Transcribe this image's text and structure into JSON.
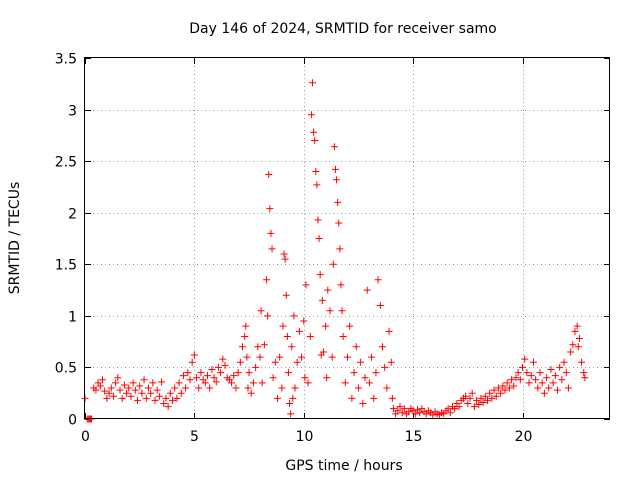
{
  "chart_data": {
    "type": "scatter",
    "title": "Day 146 of 2024, SRMTID for receiver samo",
    "xlabel": "GPS time / hours",
    "ylabel": "SRMTID / TECUs",
    "xlim": [
      0,
      24
    ],
    "ylim": [
      0,
      3.5
    ],
    "xticks": [
      0,
      5,
      10,
      15,
      20
    ],
    "yticks": [
      0,
      0.5,
      1,
      1.5,
      2,
      2.5,
      3,
      3.5
    ],
    "xtick_labels": [
      "0",
      "5",
      "10",
      "15",
      "20"
    ],
    "ytick_labels": [
      "0",
      "0.5",
      "1",
      "1.5",
      "2",
      "2.5",
      "3",
      "3.5"
    ],
    "grid": true,
    "marker": "+",
    "color": "#ff0000",
    "series": [
      {
        "name": "SRMTID",
        "points": [
          [
            0.0,
            0.2
          ],
          [
            0.1,
            0.0
          ],
          [
            0.15,
            0.0
          ],
          [
            0.2,
            0.0
          ],
          [
            0.25,
            0.0
          ],
          [
            0.3,
            0.0
          ],
          [
            0.4,
            0.3
          ],
          [
            0.5,
            0.28
          ],
          [
            0.6,
            0.35
          ],
          [
            0.7,
            0.32
          ],
          [
            0.8,
            0.38
          ],
          [
            0.9,
            0.27
          ],
          [
            1.0,
            0.2
          ],
          [
            1.1,
            0.25
          ],
          [
            1.2,
            0.3
          ],
          [
            1.3,
            0.22
          ],
          [
            1.4,
            0.35
          ],
          [
            1.5,
            0.4
          ],
          [
            1.6,
            0.28
          ],
          [
            1.7,
            0.2
          ],
          [
            1.8,
            0.33
          ],
          [
            1.9,
            0.25
          ],
          [
            2.0,
            0.3
          ],
          [
            2.1,
            0.22
          ],
          [
            2.2,
            0.35
          ],
          [
            2.3,
            0.28
          ],
          [
            2.4,
            0.18
          ],
          [
            2.5,
            0.32
          ],
          [
            2.6,
            0.25
          ],
          [
            2.7,
            0.38
          ],
          [
            2.8,
            0.2
          ],
          [
            2.9,
            0.3
          ],
          [
            3.0,
            0.25
          ],
          [
            3.1,
            0.35
          ],
          [
            3.2,
            0.18
          ],
          [
            3.3,
            0.28
          ],
          [
            3.4,
            0.22
          ],
          [
            3.5,
            0.36
          ],
          [
            3.6,
            0.15
          ],
          [
            3.7,
            0.2
          ],
          [
            3.8,
            0.12
          ],
          [
            3.9,
            0.25
          ],
          [
            4.0,
            0.18
          ],
          [
            4.1,
            0.3
          ],
          [
            4.2,
            0.2
          ],
          [
            4.3,
            0.35
          ],
          [
            4.4,
            0.25
          ],
          [
            4.5,
            0.42
          ],
          [
            4.6,
            0.3
          ],
          [
            4.7,
            0.45
          ],
          [
            4.8,
            0.38
          ],
          [
            4.9,
            0.55
          ],
          [
            5.0,
            0.62
          ],
          [
            5.1,
            0.4
          ],
          [
            5.2,
            0.3
          ],
          [
            5.3,
            0.45
          ],
          [
            5.4,
            0.38
          ],
          [
            5.5,
            0.35
          ],
          [
            5.6,
            0.42
          ],
          [
            5.7,
            0.3
          ],
          [
            5.8,
            0.48
          ],
          [
            5.9,
            0.4
          ],
          [
            6.0,
            0.36
          ],
          [
            6.1,
            0.5
          ],
          [
            6.2,
            0.45
          ],
          [
            6.3,
            0.58
          ],
          [
            6.4,
            0.52
          ],
          [
            6.5,
            0.4
          ],
          [
            6.6,
            0.38
          ],
          [
            6.7,
            0.35
          ],
          [
            6.8,
            0.42
          ],
          [
            6.9,
            0.3
          ],
          [
            7.0,
            0.45
          ],
          [
            7.1,
            0.55
          ],
          [
            7.2,
            0.7
          ],
          [
            7.3,
            0.8
          ],
          [
            7.35,
            0.9
          ],
          [
            7.4,
            0.6
          ],
          [
            7.45,
            0.3
          ],
          [
            7.5,
            0.45
          ],
          [
            7.6,
            0.25
          ],
          [
            7.7,
            0.35
          ],
          [
            7.8,
            0.5
          ],
          [
            7.9,
            0.7
          ],
          [
            8.0,
            0.6
          ],
          [
            8.05,
            1.05
          ],
          [
            8.1,
            0.35
          ],
          [
            8.2,
            0.72
          ],
          [
            8.3,
            1.35
          ],
          [
            8.35,
            1.0
          ],
          [
            8.4,
            2.37
          ],
          [
            8.45,
            2.04
          ],
          [
            8.5,
            1.8
          ],
          [
            8.55,
            1.65
          ],
          [
            8.6,
            0.4
          ],
          [
            8.7,
            0.55
          ],
          [
            8.8,
            0.2
          ],
          [
            8.9,
            0.6
          ],
          [
            9.0,
            0.3
          ],
          [
            9.05,
            0.9
          ],
          [
            9.1,
            1.6
          ],
          [
            9.15,
            1.55
          ],
          [
            9.2,
            1.2
          ],
          [
            9.25,
            0.8
          ],
          [
            9.3,
            0.45
          ],
          [
            9.35,
            0.15
          ],
          [
            9.4,
            0.05
          ],
          [
            9.45,
            0.7
          ],
          [
            9.5,
            0.2
          ],
          [
            9.55,
            1.0
          ],
          [
            9.6,
            0.3
          ],
          [
            9.7,
            0.55
          ],
          [
            9.8,
            0.85
          ],
          [
            9.9,
            0.6
          ],
          [
            10.0,
            0.95
          ],
          [
            10.05,
            0.4
          ],
          [
            10.1,
            1.3
          ],
          [
            10.2,
            0.35
          ],
          [
            10.3,
            0.8
          ],
          [
            10.35,
            2.95
          ],
          [
            10.4,
            3.26
          ],
          [
            10.45,
            2.78
          ],
          [
            10.5,
            2.7
          ],
          [
            10.55,
            2.4
          ],
          [
            10.6,
            2.27
          ],
          [
            10.65,
            1.93
          ],
          [
            10.7,
            1.75
          ],
          [
            10.75,
            1.4
          ],
          [
            10.8,
            0.62
          ],
          [
            10.85,
            1.15
          ],
          [
            10.9,
            0.65
          ],
          [
            11.0,
            0.9
          ],
          [
            11.05,
            0.4
          ],
          [
            11.1,
            1.25
          ],
          [
            11.2,
            1.05
          ],
          [
            11.3,
            0.6
          ],
          [
            11.35,
            1.5
          ],
          [
            11.4,
            2.64
          ],
          [
            11.45,
            2.42
          ],
          [
            11.5,
            2.32
          ],
          [
            11.55,
            2.1
          ],
          [
            11.6,
            1.9
          ],
          [
            11.65,
            1.65
          ],
          [
            11.7,
            1.3
          ],
          [
            11.75,
            1.05
          ],
          [
            11.8,
            0.8
          ],
          [
            11.9,
            0.35
          ],
          [
            12.0,
            0.6
          ],
          [
            12.1,
            0.9
          ],
          [
            12.2,
            0.2
          ],
          [
            12.3,
            0.45
          ],
          [
            12.4,
            0.7
          ],
          [
            12.5,
            0.3
          ],
          [
            12.6,
            0.55
          ],
          [
            12.7,
            0.15
          ],
          [
            12.8,
            0.4
          ],
          [
            12.9,
            1.25
          ],
          [
            13.0,
            0.35
          ],
          [
            13.1,
            0.6
          ],
          [
            13.2,
            0.2
          ],
          [
            13.3,
            0.45
          ],
          [
            13.4,
            1.35
          ],
          [
            13.5,
            1.1
          ],
          [
            13.6,
            0.7
          ],
          [
            13.7,
            0.5
          ],
          [
            13.8,
            0.3
          ],
          [
            13.9,
            0.85
          ],
          [
            14.0,
            0.55
          ],
          [
            14.05,
            0.2
          ],
          [
            14.1,
            0.1
          ],
          [
            14.2,
            0.05
          ],
          [
            14.3,
            0.08
          ],
          [
            14.4,
            0.12
          ],
          [
            14.5,
            0.06
          ],
          [
            14.6,
            0.1
          ],
          [
            14.7,
            0.05
          ],
          [
            14.8,
            0.07
          ],
          [
            14.9,
            0.1
          ],
          [
            15.0,
            0.08
          ],
          [
            15.1,
            0.05
          ],
          [
            15.2,
            0.09
          ],
          [
            15.3,
            0.06
          ],
          [
            15.4,
            0.1
          ],
          [
            15.5,
            0.07
          ],
          [
            15.6,
            0.05
          ],
          [
            15.7,
            0.08
          ],
          [
            15.8,
            0.06
          ],
          [
            15.9,
            0.04
          ],
          [
            16.0,
            0.07
          ],
          [
            16.1,
            0.05
          ],
          [
            16.2,
            0.04
          ],
          [
            16.3,
            0.06
          ],
          [
            16.4,
            0.05
          ],
          [
            16.5,
            0.08
          ],
          [
            16.6,
            0.1
          ],
          [
            16.7,
            0.06
          ],
          [
            16.8,
            0.12
          ],
          [
            16.9,
            0.1
          ],
          [
            17.0,
            0.15
          ],
          [
            17.1,
            0.12
          ],
          [
            17.2,
            0.18
          ],
          [
            17.3,
            0.2
          ],
          [
            17.4,
            0.22
          ],
          [
            17.5,
            0.15
          ],
          [
            17.6,
            0.2
          ],
          [
            17.7,
            0.25
          ],
          [
            17.8,
            0.12
          ],
          [
            17.9,
            0.18
          ],
          [
            18.0,
            0.14
          ],
          [
            18.1,
            0.2
          ],
          [
            18.2,
            0.16
          ],
          [
            18.3,
            0.22
          ],
          [
            18.4,
            0.18
          ],
          [
            18.5,
            0.25
          ],
          [
            18.6,
            0.2
          ],
          [
            18.7,
            0.28
          ],
          [
            18.8,
            0.22
          ],
          [
            18.9,
            0.3
          ],
          [
            19.0,
            0.25
          ],
          [
            19.1,
            0.32
          ],
          [
            19.2,
            0.28
          ],
          [
            19.3,
            0.35
          ],
          [
            19.4,
            0.3
          ],
          [
            19.5,
            0.38
          ],
          [
            19.6,
            0.32
          ],
          [
            19.7,
            0.4
          ],
          [
            19.8,
            0.45
          ],
          [
            19.9,
            0.38
          ],
          [
            20.0,
            0.5
          ],
          [
            20.1,
            0.58
          ],
          [
            20.2,
            0.45
          ],
          [
            20.3,
            0.35
          ],
          [
            20.4,
            0.42
          ],
          [
            20.5,
            0.55
          ],
          [
            20.6,
            0.38
          ],
          [
            20.7,
            0.3
          ],
          [
            20.8,
            0.45
          ],
          [
            20.9,
            0.35
          ],
          [
            21.0,
            0.25
          ],
          [
            21.1,
            0.4
          ],
          [
            21.2,
            0.3
          ],
          [
            21.3,
            0.48
          ],
          [
            21.4,
            0.35
          ],
          [
            21.5,
            0.42
          ],
          [
            21.6,
            0.28
          ],
          [
            21.7,
            0.5
          ],
          [
            21.8,
            0.38
          ],
          [
            21.9,
            0.55
          ],
          [
            22.0,
            0.45
          ],
          [
            22.1,
            0.3
          ],
          [
            22.2,
            0.65
          ],
          [
            22.3,
            0.72
          ],
          [
            22.4,
            0.85
          ],
          [
            22.5,
            0.9
          ],
          [
            22.55,
            0.7
          ],
          [
            22.6,
            0.78
          ],
          [
            22.7,
            0.55
          ],
          [
            22.8,
            0.45
          ],
          [
            22.85,
            0.4
          ]
        ]
      }
    ]
  }
}
